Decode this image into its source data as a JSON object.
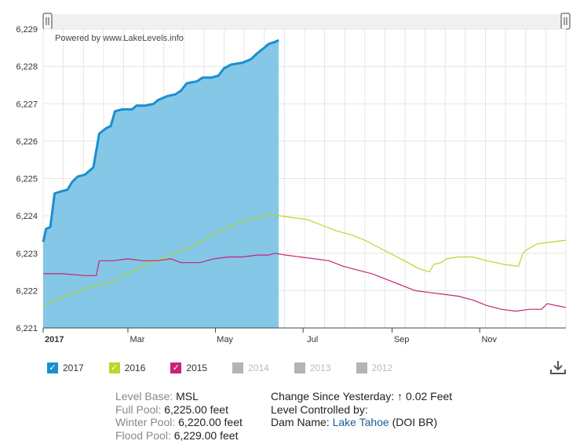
{
  "chart_data": {
    "type": "area",
    "watermark": "Powered by www.LakeLevels.info",
    "x_ticks": [
      "2017",
      "Mar",
      "May",
      "Jul",
      "Sep",
      "Nov"
    ],
    "y_ticks": [
      "6,221",
      "6,222",
      "6,223",
      "6,224",
      "6,225",
      "6,226",
      "6,227",
      "6,228",
      "6,229"
    ],
    "ylim": [
      6221,
      6229
    ],
    "x_unit": "day of year",
    "xlim": [
      1,
      365
    ],
    "grid": true,
    "legend_position": "bottom",
    "series": [
      {
        "name": "2017",
        "color": "#1a8fd0",
        "fill": "#84c7e6",
        "points": [
          [
            1,
            6223.3
          ],
          [
            3,
            6223.65
          ],
          [
            6,
            6223.7
          ],
          [
            9,
            6224.6
          ],
          [
            13,
            6224.65
          ],
          [
            18,
            6224.7
          ],
          [
            21,
            6224.9
          ],
          [
            25,
            6225.05
          ],
          [
            30,
            6225.1
          ],
          [
            33,
            6225.2
          ],
          [
            36,
            6225.3
          ],
          [
            40,
            6226.2
          ],
          [
            45,
            6226.35
          ],
          [
            48,
            6226.4
          ],
          [
            51,
            6226.8
          ],
          [
            56,
            6226.85
          ],
          [
            63,
            6226.85
          ],
          [
            66,
            6226.95
          ],
          [
            72,
            6226.95
          ],
          [
            78,
            6227.0
          ],
          [
            81,
            6227.1
          ],
          [
            87,
            6227.2
          ],
          [
            93,
            6227.25
          ],
          [
            97,
            6227.35
          ],
          [
            101,
            6227.55
          ],
          [
            108,
            6227.6
          ],
          [
            112,
            6227.7
          ],
          [
            118,
            6227.7
          ],
          [
            123,
            6227.75
          ],
          [
            127,
            6227.95
          ],
          [
            132,
            6228.05
          ],
          [
            140,
            6228.1
          ],
          [
            146,
            6228.2
          ],
          [
            150,
            6228.35
          ],
          [
            155,
            6228.5
          ],
          [
            158,
            6228.6
          ],
          [
            162,
            6228.65
          ],
          [
            165,
            6228.7
          ]
        ]
      },
      {
        "name": "2016",
        "color": "#b5d92a",
        "points": [
          [
            1,
            6221.6
          ],
          [
            10,
            6221.75
          ],
          [
            20,
            6221.9
          ],
          [
            30,
            6222.05
          ],
          [
            40,
            6222.15
          ],
          [
            50,
            6222.25
          ],
          [
            60,
            6222.45
          ],
          [
            70,
            6222.65
          ],
          [
            80,
            6222.8
          ],
          [
            90,
            6222.95
          ],
          [
            100,
            6223.1
          ],
          [
            110,
            6223.3
          ],
          [
            120,
            6223.5
          ],
          [
            130,
            6223.7
          ],
          [
            140,
            6223.85
          ],
          [
            150,
            6223.95
          ],
          [
            158,
            6224.05
          ],
          [
            166,
            6224.0
          ],
          [
            175,
            6223.95
          ],
          [
            185,
            6223.9
          ],
          [
            195,
            6223.75
          ],
          [
            205,
            6223.6
          ],
          [
            215,
            6223.5
          ],
          [
            225,
            6223.35
          ],
          [
            235,
            6223.15
          ],
          [
            245,
            6222.95
          ],
          [
            255,
            6222.75
          ],
          [
            262,
            6222.6
          ],
          [
            270,
            6222.5
          ],
          [
            273,
            6222.7
          ],
          [
            278,
            6222.75
          ],
          [
            282,
            6222.85
          ],
          [
            290,
            6222.9
          ],
          [
            300,
            6222.9
          ],
          [
            310,
            6222.8
          ],
          [
            322,
            6222.7
          ],
          [
            332,
            6222.65
          ],
          [
            335,
            6223.0
          ],
          [
            338,
            6223.1
          ],
          [
            345,
            6223.25
          ],
          [
            355,
            6223.3
          ],
          [
            365,
            6223.35
          ]
        ]
      },
      {
        "name": "2015",
        "color": "#c8237a",
        "points": [
          [
            1,
            6222.45
          ],
          [
            15,
            6222.45
          ],
          [
            30,
            6222.4
          ],
          [
            38,
            6222.4
          ],
          [
            40,
            6222.8
          ],
          [
            50,
            6222.8
          ],
          [
            60,
            6222.85
          ],
          [
            70,
            6222.8
          ],
          [
            80,
            6222.8
          ],
          [
            90,
            6222.85
          ],
          [
            97,
            6222.75
          ],
          [
            110,
            6222.75
          ],
          [
            120,
            6222.85
          ],
          [
            130,
            6222.9
          ],
          [
            140,
            6222.9
          ],
          [
            150,
            6222.95
          ],
          [
            158,
            6222.95
          ],
          [
            162,
            6223.0
          ],
          [
            170,
            6222.95
          ],
          [
            180,
            6222.9
          ],
          [
            190,
            6222.85
          ],
          [
            200,
            6222.8
          ],
          [
            210,
            6222.65
          ],
          [
            220,
            6222.55
          ],
          [
            230,
            6222.45
          ],
          [
            240,
            6222.3
          ],
          [
            250,
            6222.15
          ],
          [
            260,
            6222.0
          ],
          [
            270,
            6221.95
          ],
          [
            280,
            6221.9
          ],
          [
            290,
            6221.85
          ],
          [
            300,
            6221.75
          ],
          [
            310,
            6221.6
          ],
          [
            320,
            6221.5
          ],
          [
            330,
            6221.45
          ],
          [
            340,
            6221.5
          ],
          [
            348,
            6221.5
          ],
          [
            352,
            6221.65
          ],
          [
            358,
            6221.6
          ],
          [
            365,
            6221.55
          ]
        ]
      }
    ]
  },
  "legend": [
    {
      "label": "2017",
      "color": "#1a8fd0",
      "checked": true
    },
    {
      "label": "2016",
      "color": "#b5d92a",
      "checked": true
    },
    {
      "label": "2015",
      "color": "#c8237a",
      "checked": true
    },
    {
      "label": "2014",
      "color": "#b0b5b5",
      "checked": false
    },
    {
      "label": "2013",
      "color": "#b0b5b5",
      "checked": false
    },
    {
      "label": "2012",
      "color": "#b0b5b5",
      "checked": false
    }
  ],
  "checkmark": "✓",
  "download_icon": "download-icon",
  "info": {
    "level_base_label": "Level Base:",
    "level_base_value": "MSL",
    "full_pool_label": "Full Pool:",
    "full_pool_value": "6,225.00 feet",
    "winter_pool_label": "Winter Pool:",
    "winter_pool_value": "6,220.00 feet",
    "flood_pool_label": "Flood Pool:",
    "flood_pool_value": "6,229.00 feet",
    "change_label": "Change Since Yesterday:",
    "change_arrow": "↑",
    "change_value": "0.02 Feet",
    "controlled_label": "Level Controlled by:",
    "dam_label": "Dam Name:",
    "dam_link": "Lake Tahoe",
    "dam_suffix": "(DOI BR)"
  }
}
